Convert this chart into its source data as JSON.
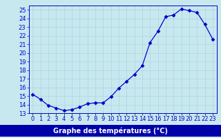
{
  "hours": [
    0,
    1,
    2,
    3,
    4,
    5,
    6,
    7,
    8,
    9,
    10,
    11,
    12,
    13,
    14,
    15,
    16,
    17,
    18,
    19,
    20,
    21,
    22,
    23
  ],
  "temperatures": [
    15.2,
    14.6,
    13.9,
    13.6,
    13.3,
    13.4,
    13.7,
    14.1,
    14.2,
    14.2,
    14.9,
    15.9,
    16.7,
    17.5,
    18.5,
    21.2,
    22.5,
    24.2,
    24.4,
    25.1,
    24.9,
    24.7,
    23.3,
    21.6
  ],
  "line_color": "#0000cc",
  "marker": "D",
  "marker_size": 2.5,
  "bg_color": "#c8e8f0",
  "grid_color": "#b0d8e0",
  "xlabel": "Graphe des températures (°C)",
  "xlabel_bar_color": "#0000aa",
  "xlabel_text_color": "#ffffff",
  "ylim": [
    13,
    25.5
  ],
  "yticks": [
    13,
    14,
    15,
    16,
    17,
    18,
    19,
    20,
    21,
    22,
    23,
    24,
    25
  ],
  "xtick_labels": [
    "0",
    "1",
    "2",
    "3",
    "4",
    "5",
    "6",
    "7",
    "8",
    "9",
    "10",
    "11",
    "12",
    "13",
    "14",
    "15",
    "16",
    "17",
    "18",
    "19",
    "20",
    "21",
    "22",
    "23"
  ],
  "tick_color": "#0000cc",
  "axis_color": "#0000cc",
  "tick_fontsize": 6,
  "ylabel_fontsize": 7
}
